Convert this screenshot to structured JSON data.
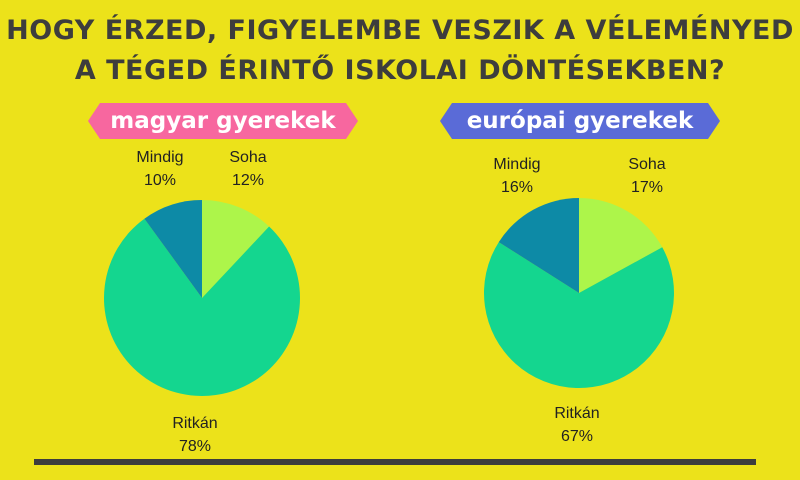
{
  "title_lines": [
    "HOGY ÉRZED, FIGYELEMBE VESZIK A VÉLEMÉNYED",
    "A TÉGED ÉRINTŐ ISKOLAI DÖNTÉSEKBEN?"
  ],
  "colors": {
    "background": "#ece21a",
    "soha": "#adf54a",
    "ritkan": "#14d68f",
    "mindig": "#0d8aa6",
    "banner_left": "#f7679f",
    "banner_right": "#5a6bd7"
  },
  "chart_data": [
    {
      "type": "pie",
      "title": "magyar gyerekek",
      "slices": [
        {
          "label": "Soha",
          "value": 12,
          "value_text": "12%"
        },
        {
          "label": "Ritkán",
          "value": 78,
          "value_text": "78%"
        },
        {
          "label": "Mindig",
          "value": 10,
          "value_text": "10%"
        }
      ]
    },
    {
      "type": "pie",
      "title": "európai gyerekek",
      "slices": [
        {
          "label": "Soha",
          "value": 17,
          "value_text": "17%"
        },
        {
          "label": "Ritkán",
          "value": 67,
          "value_text": "67%"
        },
        {
          "label": "Mindig",
          "value": 16,
          "value_text": "16%"
        }
      ]
    }
  ]
}
